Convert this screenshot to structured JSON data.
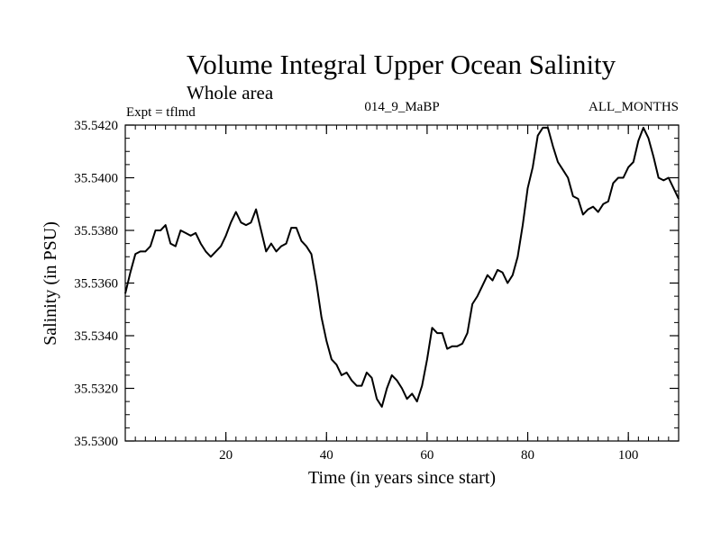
{
  "chart_data": {
    "type": "line",
    "title": "Volume Integral Upper Ocean Salinity",
    "subtitle": "Whole area",
    "expt_label": "Expt = tflmd",
    "center_label": "014_9_MaBP",
    "right_label": "ALL_MONTHS",
    "xlabel": "Time (in years since start)",
    "ylabel": "Salinity (in PSU)",
    "xlim": [
      0,
      110
    ],
    "ylim": [
      35.53,
      35.542
    ],
    "x_major_ticks": [
      20,
      40,
      60,
      80,
      100
    ],
    "x_minor_step": 2,
    "y_major_ticks": [
      35.53,
      35.532,
      35.534,
      35.536,
      35.538,
      35.54,
      35.542
    ],
    "y_tick_labels": [
      "35.5300",
      "35.5320",
      "35.5340",
      "35.5360",
      "35.5380",
      "35.5400",
      "35.5420"
    ],
    "y_minor_step": 0.0005,
    "series": [
      {
        "name": "Salinity",
        "x": [
          0,
          1,
          2,
          3,
          4,
          5,
          6,
          7,
          8,
          9,
          10,
          11,
          12,
          13,
          14,
          15,
          16,
          17,
          18,
          19,
          20,
          21,
          22,
          23,
          24,
          25,
          26,
          27,
          28,
          29,
          30,
          31,
          32,
          33,
          34,
          35,
          36,
          37,
          38,
          39,
          40,
          41,
          42,
          43,
          44,
          45,
          46,
          47,
          48,
          49,
          50,
          51,
          52,
          53,
          54,
          55,
          56,
          57,
          58,
          59,
          60,
          61,
          62,
          63,
          64,
          65,
          66,
          67,
          68,
          69,
          70,
          71,
          72,
          73,
          74,
          75,
          76,
          77,
          78,
          79,
          80,
          81,
          82,
          83,
          84,
          85,
          86,
          87,
          88,
          89,
          90,
          91,
          92,
          93,
          94,
          95,
          96,
          97,
          98,
          99,
          100,
          101,
          102,
          103,
          104,
          105,
          106,
          107,
          108,
          109,
          110
        ],
        "values": [
          35.5356,
          35.5364,
          35.5371,
          35.5372,
          35.5372,
          35.5374,
          35.538,
          35.538,
          35.5382,
          35.5375,
          35.5374,
          35.538,
          35.5379,
          35.5378,
          35.5379,
          35.5375,
          35.5372,
          35.537,
          35.5372,
          35.5374,
          35.5378,
          35.5383,
          35.5387,
          35.5383,
          35.5382,
          35.5383,
          35.5388,
          35.538,
          35.5372,
          35.5375,
          35.5372,
          35.5374,
          35.5375,
          35.5381,
          35.5381,
          35.5376,
          35.5374,
          35.5371,
          35.536,
          35.5347,
          35.5338,
          35.5331,
          35.5329,
          35.5325,
          35.5326,
          35.5323,
          35.5321,
          35.5321,
          35.5326,
          35.5324,
          35.5316,
          35.5313,
          35.532,
          35.5325,
          35.5323,
          35.532,
          35.5316,
          35.5318,
          35.5315,
          35.5321,
          35.5331,
          35.5343,
          35.5341,
          35.5341,
          35.5335,
          35.5336,
          35.5336,
          35.5337,
          35.5341,
          35.5352,
          35.5355,
          35.5359,
          35.5363,
          35.5361,
          35.5365,
          35.5364,
          35.536,
          35.5363,
          35.537,
          35.5382,
          35.5396,
          35.5404,
          35.5416,
          35.5419,
          35.5419,
          35.5412,
          35.5406,
          35.5403,
          35.54,
          35.5393,
          35.5392,
          35.5386,
          35.5388,
          35.5389,
          35.5387,
          35.539,
          35.5391,
          35.5398,
          35.54,
          35.54,
          35.5404,
          35.5406,
          35.5414,
          35.5419,
          35.5415,
          35.5408,
          35.54,
          35.5399,
          35.54,
          35.5396,
          35.5392
        ]
      }
    ]
  }
}
